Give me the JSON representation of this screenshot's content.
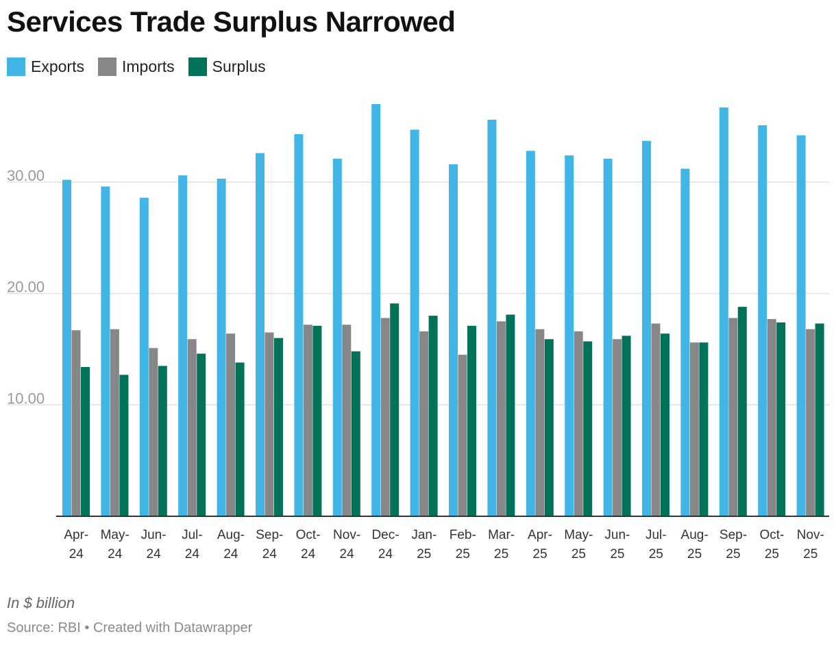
{
  "title": "Services Trade Surplus Narrowed",
  "note": "In $ billion",
  "source": "Source: RBI • Created with Datawrapper",
  "chart_data": {
    "type": "bar",
    "title": "Services Trade Surplus Narrowed",
    "xlabel": "",
    "ylabel": "In $ billion",
    "ylim": [
      0,
      37.5
    ],
    "yticks": [
      10,
      20,
      30
    ],
    "ytick_labels": [
      "10.00",
      "20.00",
      "30.00"
    ],
    "grid": true,
    "legend_position": "top-left",
    "categories": [
      [
        "Apr-",
        "24"
      ],
      [
        "May-",
        "24"
      ],
      [
        "Jun-",
        "24"
      ],
      [
        "Jul-",
        "24"
      ],
      [
        "Aug-",
        "24"
      ],
      [
        "Sep-",
        "24"
      ],
      [
        "Oct-",
        "24"
      ],
      [
        "Nov-",
        "24"
      ],
      [
        "Dec-",
        "24"
      ],
      [
        "Jan-",
        "25"
      ],
      [
        "Feb-",
        "25"
      ],
      [
        "Mar-",
        "25"
      ],
      [
        "Apr-",
        "25"
      ],
      [
        "May-",
        "25"
      ],
      [
        "Jun-",
        "25"
      ],
      [
        "Jul-",
        "25"
      ],
      [
        "Aug-",
        "25"
      ],
      [
        "Sep-",
        "25"
      ],
      [
        "Oct-",
        "25"
      ],
      [
        "Nov-",
        "25"
      ]
    ],
    "series": [
      {
        "name": "Exports",
        "color": "#41b6e6",
        "values": [
          30.2,
          29.6,
          28.6,
          30.6,
          30.3,
          32.6,
          34.3,
          32.1,
          37.0,
          34.7,
          31.6,
          35.6,
          32.8,
          32.4,
          32.1,
          33.7,
          31.2,
          36.7,
          35.1,
          34.2
        ]
      },
      {
        "name": "Imports",
        "color": "#878787",
        "values": [
          16.7,
          16.8,
          15.1,
          15.9,
          16.4,
          16.5,
          17.2,
          17.2,
          17.8,
          16.6,
          14.5,
          17.5,
          16.8,
          16.6,
          15.9,
          17.3,
          15.6,
          17.8,
          17.7,
          16.8
        ]
      },
      {
        "name": "Surplus",
        "color": "#00725a",
        "values": [
          13.4,
          12.7,
          13.5,
          14.6,
          13.8,
          16.0,
          17.1,
          14.8,
          19.1,
          18.0,
          17.1,
          18.1,
          15.9,
          15.7,
          16.2,
          16.4,
          15.6,
          18.8,
          17.4,
          17.3
        ]
      }
    ]
  }
}
